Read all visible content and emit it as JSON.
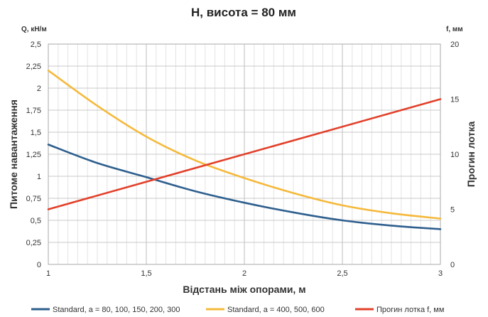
{
  "chart_data": {
    "type": "line",
    "title": "H, висота = 80 мм",
    "xlabel": "Відстань між опорами, м",
    "ylabel_left": "Питоме навантаження",
    "ylabel_left_unit": "Q, кН/м",
    "ylabel_right": "Прогин лотка",
    "ylabel_right_unit": "f, мм",
    "xlim": [
      1,
      3
    ],
    "ylim_left": [
      0,
      2.5
    ],
    "ylim_right": [
      0,
      20
    ],
    "x_ticks": [
      "1",
      "1,5",
      "2",
      "2,5",
      "3"
    ],
    "y_left_ticks": [
      "0",
      "0,25",
      "0,5",
      "0,75",
      "1",
      "1,25",
      "1,5",
      "1,75",
      "2",
      "2,25",
      "2,5"
    ],
    "y_right_ticks": [
      "0",
      "5",
      "10",
      "15",
      "20"
    ],
    "grid": true,
    "legend_position": "bottom",
    "series": [
      {
        "name": "Standard,  a = 80, 100, 150, 200, 300",
        "axis": "left",
        "color": "#2e5f8e",
        "x": [
          1,
          1.25,
          1.5,
          1.75,
          2,
          2.25,
          2.5,
          2.75,
          3
        ],
        "y": [
          1.36,
          1.15,
          0.99,
          0.83,
          0.7,
          0.59,
          0.5,
          0.44,
          0.4
        ]
      },
      {
        "name": "Standard,  a = 400, 500, 600",
        "axis": "left",
        "color": "#f5b93b",
        "x": [
          1,
          1.25,
          1.5,
          1.75,
          2,
          2.25,
          2.5,
          2.75,
          3
        ],
        "y": [
          2.2,
          1.8,
          1.45,
          1.18,
          0.98,
          0.81,
          0.67,
          0.58,
          0.52
        ]
      },
      {
        "name": "Прогин лотка f, мм",
        "axis": "right",
        "color": "#e2402a",
        "x": [
          1,
          3
        ],
        "y": [
          5,
          15
        ]
      }
    ]
  }
}
